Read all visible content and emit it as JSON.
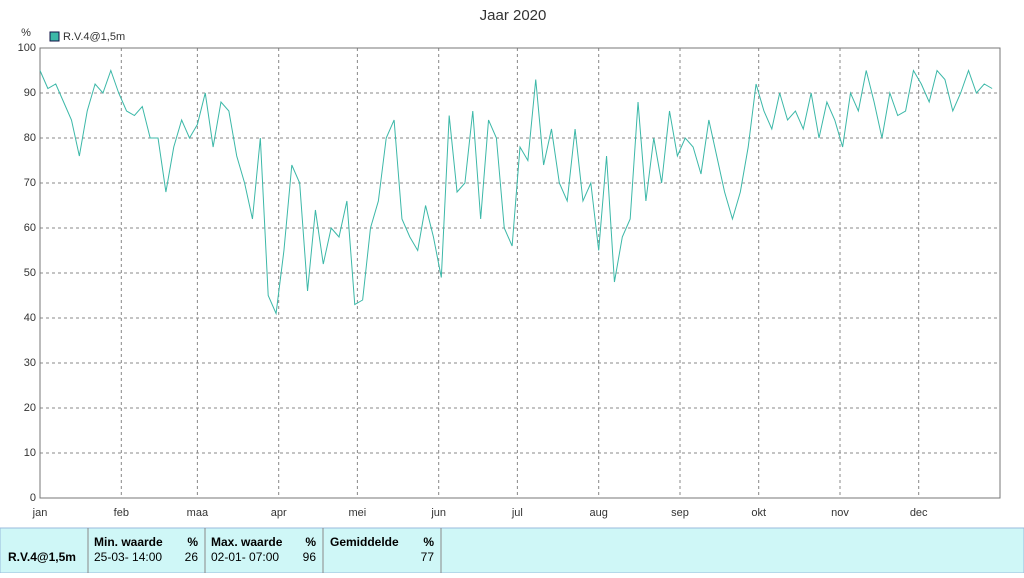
{
  "chart_data": {
    "type": "line",
    "title": "Jaar 2020",
    "y_label": "%",
    "x": [
      0,
      3,
      6,
      9,
      12,
      15,
      18,
      21,
      24,
      27,
      30,
      33,
      36,
      39,
      42,
      45,
      48,
      51,
      54,
      57,
      60,
      63,
      66,
      69,
      72,
      75,
      78,
      81,
      84,
      87,
      90,
      93,
      96,
      99,
      102,
      105,
      108,
      111,
      114,
      117,
      120,
      123,
      126,
      129,
      132,
      135,
      138,
      141,
      144,
      147,
      150,
      153,
      156,
      159,
      162,
      165,
      168,
      171,
      174,
      177,
      180,
      183,
      186,
      189,
      192,
      195,
      198,
      201,
      204,
      207,
      210,
      213,
      216,
      219,
      222,
      225,
      228,
      231,
      234,
      237,
      240,
      243,
      246,
      249,
      252,
      255,
      258,
      261,
      264,
      267,
      270,
      273,
      276,
      279,
      282,
      285,
      288,
      291,
      294,
      297,
      300,
      303,
      306,
      309,
      312,
      315,
      318,
      321,
      324,
      327,
      330,
      333,
      336,
      339,
      342,
      345,
      348,
      351,
      354,
      357,
      360,
      363
    ],
    "series": [
      {
        "name": "R.V.4@1,5m",
        "color": "#3cb8a8",
        "values": [
          95,
          91,
          92,
          88,
          84,
          76,
          86,
          92,
          90,
          95,
          90,
          86,
          85,
          87,
          80,
          80,
          68,
          78,
          84,
          80,
          83,
          90,
          78,
          88,
          86,
          76,
          70,
          62,
          80,
          45,
          41,
          55,
          74,
          70,
          46,
          64,
          52,
          60,
          58,
          66,
          43,
          44,
          60,
          66,
          80,
          84,
          62,
          58,
          55,
          65,
          58,
          49,
          85,
          68,
          70,
          86,
          62,
          84,
          80,
          60,
          56,
          78,
          75,
          93,
          74,
          82,
          70,
          66,
          82,
          66,
          70,
          55,
          76,
          48,
          58,
          62,
          88,
          66,
          80,
          70,
          86,
          76,
          80,
          78,
          72,
          84,
          76,
          68,
          62,
          68,
          78,
          92,
          86,
          82,
          90,
          84,
          86,
          82,
          90,
          80,
          88,
          84,
          78,
          90,
          86,
          95,
          88,
          80,
          90,
          85,
          86,
          95,
          92,
          88,
          95,
          93,
          86,
          90,
          95,
          90,
          92,
          91
        ]
      }
    ],
    "xlim": [
      0,
      366
    ],
    "xticks": [
      {
        "value": 0,
        "label": "jan"
      },
      {
        "value": 31,
        "label": "feb"
      },
      {
        "value": 60,
        "label": "maa"
      },
      {
        "value": 91,
        "label": "apr"
      },
      {
        "value": 121,
        "label": "mei"
      },
      {
        "value": 152,
        "label": "jun"
      },
      {
        "value": 182,
        "label": "jul"
      },
      {
        "value": 213,
        "label": "aug"
      },
      {
        "value": 244,
        "label": "sep"
      },
      {
        "value": 274,
        "label": "okt"
      },
      {
        "value": 305,
        "label": "nov"
      },
      {
        "value": 335,
        "label": "dec"
      }
    ],
    "ylim": [
      0,
      100
    ],
    "yticks": [
      0,
      10,
      20,
      30,
      40,
      50,
      60,
      70,
      80,
      90,
      100
    ],
    "grid": true
  },
  "stats": {
    "name": "R.V.4@1,5m",
    "min": {
      "header": "Min. waarde",
      "unit": "%",
      "time": "25-03- 14:00",
      "value": "26"
    },
    "max": {
      "header": "Max. waarde",
      "unit": "%",
      "time": "02-01- 07:00",
      "value": "96"
    },
    "avg": {
      "header": "Gemiddelde",
      "unit": "%",
      "value": "77"
    }
  }
}
